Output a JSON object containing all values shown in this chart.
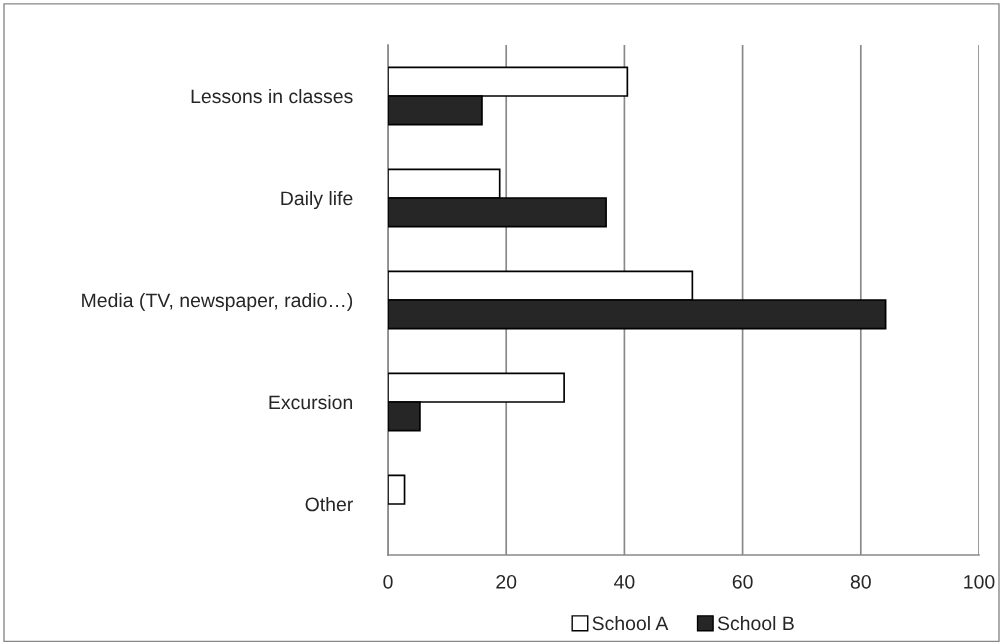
{
  "chart_data": {
    "type": "bar",
    "orientation": "horizontal",
    "categories": [
      "Lessons in classes",
      "Daily life",
      "Media (TV, newspaper, radio…)",
      "Excursion",
      "Other"
    ],
    "series": [
      {
        "name": "School A",
        "color": "#ffffff",
        "values": [
          40.5,
          18.9,
          51.5,
          29.8,
          2.8
        ]
      },
      {
        "name": "School B",
        "color": "#262626",
        "values": [
          15.9,
          36.9,
          84.2,
          5.4,
          0
        ]
      }
    ],
    "xlim": [
      0,
      100
    ],
    "xticks": [
      0,
      20,
      40,
      60,
      80,
      100
    ],
    "grid": "x",
    "legend": "bottom"
  }
}
